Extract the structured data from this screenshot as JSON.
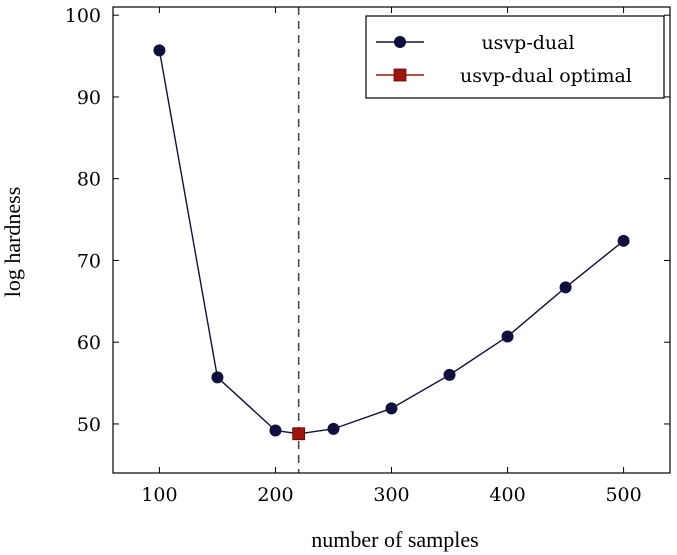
{
  "chart_data": {
    "type": "line",
    "title": "",
    "xlabel": "number of samples",
    "ylabel": "log hardness",
    "xlim": [
      60,
      540
    ],
    "ylim": [
      44,
      101
    ],
    "xticks": [
      100,
      200,
      300,
      400,
      500
    ],
    "yticks": [
      50,
      60,
      70,
      80,
      90,
      100
    ],
    "grid": false,
    "legend_position": "top-right",
    "vertical_reference_line": {
      "x": 220,
      "style": "dashed",
      "color": "#444444"
    },
    "series": [
      {
        "name": "usvp-dual",
        "marker": "circle",
        "color": "#10103f",
        "x": [
          100,
          150,
          200,
          220,
          250,
          300,
          350,
          400,
          450,
          500
        ],
        "y": [
          95.7,
          55.7,
          49.2,
          48.8,
          49.4,
          51.9,
          56.0,
          60.7,
          66.7,
          72.4
        ],
        "marked": [
          true,
          true,
          true,
          false,
          true,
          true,
          true,
          true,
          true,
          true
        ]
      },
      {
        "name": "usvp-dual optimal",
        "marker": "square",
        "color": "#a0140c",
        "x": [
          220
        ],
        "y": [
          48.8
        ]
      }
    ]
  }
}
